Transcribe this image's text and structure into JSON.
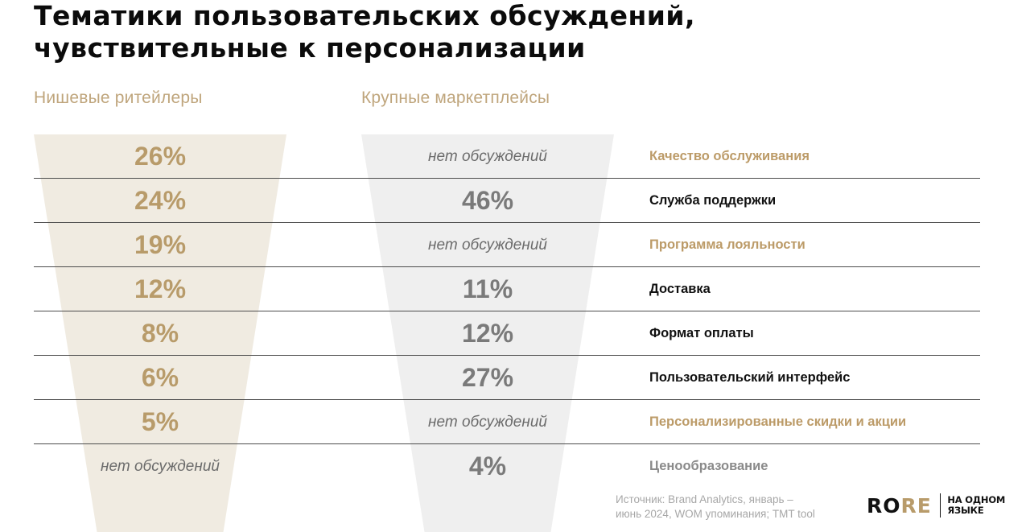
{
  "title": {
    "line1": "Тематики пользовательских обсуждений,",
    "line2": "чувствительные к персонализации"
  },
  "columns": {
    "left_label": "Нишевые ритейлеры",
    "right_label": "Крупные маркетплейсы"
  },
  "rows": [
    {
      "left": "26%",
      "right": "нет обсуждений",
      "topic": "Качество обслуживания"
    },
    {
      "left": "24%",
      "right": "46%",
      "topic": "Служба поддержки"
    },
    {
      "left": "19%",
      "right": "нет обсуждений",
      "topic": "Программа лояльности"
    },
    {
      "left": "12%",
      "right": "11%",
      "topic": "Доставка"
    },
    {
      "left": "8%",
      "right": "12%",
      "topic": "Формат оплаты"
    },
    {
      "left": "6%",
      "right": "27%",
      "topic": "Пользовательский интерфейс"
    },
    {
      "left": "5%",
      "right": "нет обсуждений",
      "topic": "Персонализированные скидки и акции"
    },
    {
      "left": "нет обсуждений",
      "right": "4%",
      "topic": "Ценообразование"
    }
  ],
  "source": {
    "line1": "Источник: Brand Analytics, январь –",
    "line2": "июнь 2024, WOM упоминания; TMT tool"
  },
  "logo": {
    "word_ro": "RO",
    "word_re": "RE",
    "tag_line1": "НА ОДНОМ",
    "tag_line2": "ЯЗЫКЕ"
  },
  "colors": {
    "gold": "#bc9b68",
    "funnel_left": "#f0ebe1",
    "funnel_right": "#efefef"
  }
}
